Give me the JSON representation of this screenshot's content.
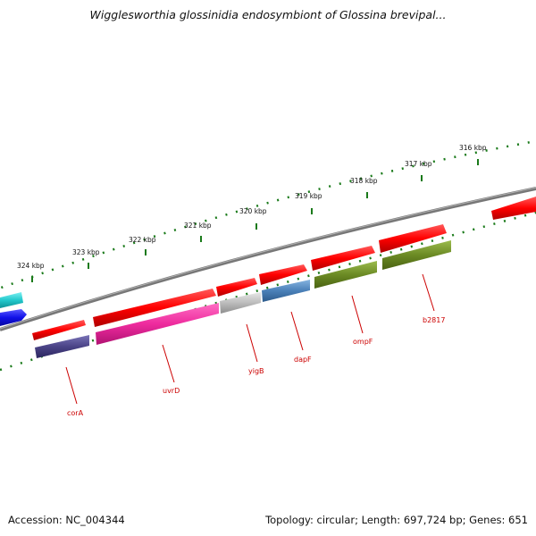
{
  "title": "Wigglesworthia glossinidia endosymbiont of Glossina brevipal...",
  "footer": {
    "accession": "Accession: NC_004344",
    "summary": "Topology: circular; Length: 697,724 bp; Genes: 651"
  },
  "ticks": [
    "324 kbp",
    "323 kbp",
    "322 kbp",
    "321 kbp",
    "320 kbp",
    "319 kbp",
    "318 kbp",
    "317 kbp",
    "316 kbp"
  ],
  "genes": [
    {
      "name": "corA",
      "color": "#4a4386",
      "labeled": true
    },
    {
      "name": "uvrD",
      "color": "#ee2b9e",
      "labeled": true
    },
    {
      "name": "yigB",
      "color": "#bcbcbc",
      "labeled": true
    },
    {
      "name": "dapF",
      "color": "#4a80b8",
      "labeled": true
    },
    {
      "name": "ompF",
      "color": "#6b8a24",
      "labeled": true
    },
    {
      "name": "b2817",
      "color": "#6b8a24",
      "labeled": true
    },
    {
      "name": "",
      "color": "#22c8cc",
      "labeled": false
    },
    {
      "name": "",
      "color": "#1010e8",
      "labeled": false
    }
  ],
  "colors": {
    "forward_strand": "#ff0000",
    "backbone": "#777777",
    "tick_dots": "#1a7a1a",
    "gene_label": "#cc0000"
  }
}
